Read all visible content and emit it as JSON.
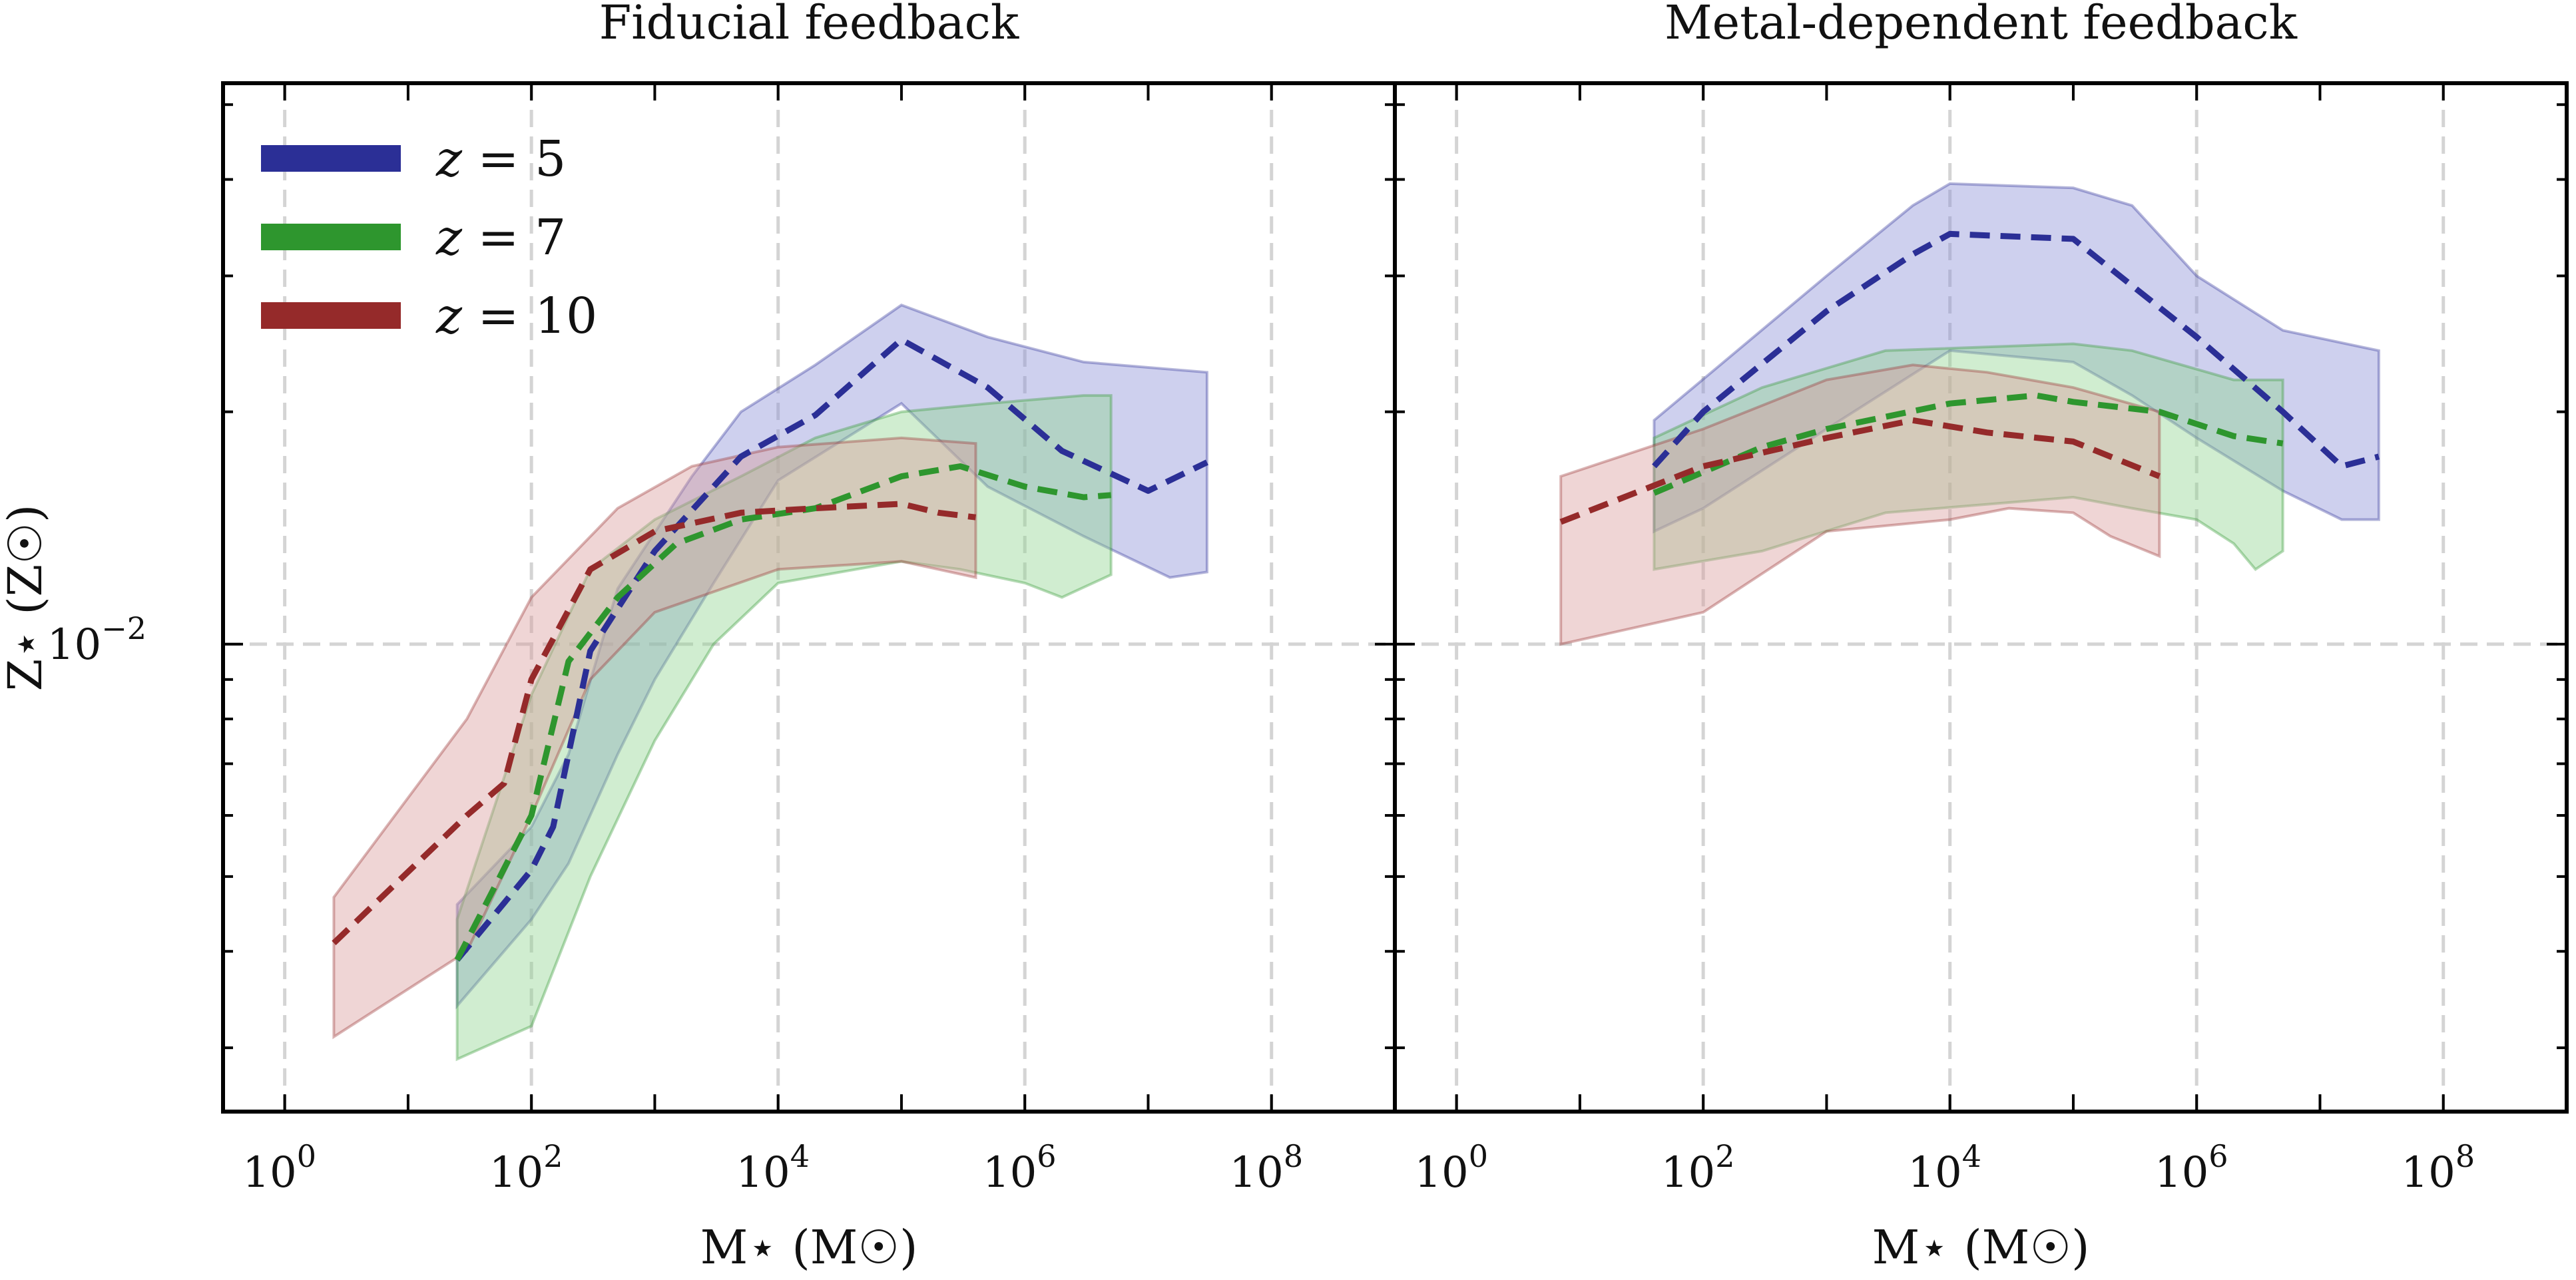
{
  "chart_data": {
    "type": "area",
    "yscale": "log",
    "xscale": "log",
    "ylabel": "Z⋆ (Z☉)",
    "xlabel": "M⋆ (M☉)",
    "ytick_label": "10",
    "ytick_exp": "−2",
    "ytick_value": 0.01,
    "ylim": [
      0.00248,
      0.0533
    ],
    "xlim_log10": [
      -0.5,
      9.0
    ],
    "xtick_values": [
      1,
      100,
      10000,
      1000000,
      100000000
    ],
    "xtick_exponents": [
      "0",
      "2",
      "4",
      "6",
      "8"
    ],
    "grid": true,
    "legend_position": "top-left",
    "legend": [
      {
        "label": "z = 5",
        "var": "z",
        "value": "5",
        "color": "#2b2f96"
      },
      {
        "label": "z = 7",
        "var": "z",
        "value": "7",
        "color": "#2e962e"
      },
      {
        "label": "z = 10",
        "var": "z",
        "value": "10",
        "color": "#952a2a"
      }
    ],
    "panels": [
      {
        "title": "Fiducial feedback",
        "series": [
          {
            "name": "z = 5",
            "color": "#2b2f96",
            "fill": "#8a8fd6",
            "median": [
              [
                25,
                0.0039
              ],
              [
                100,
                0.0051
              ],
              [
                150,
                0.0058
              ],
              [
                300,
                0.0098
              ],
              [
                1000,
                0.0132
              ],
              [
                5000,
                0.0175
              ],
              [
                20000,
                0.0198
              ],
              [
                100000,
                0.0248
              ],
              [
                500000,
                0.0215
              ],
              [
                2000000,
                0.0178
              ],
              [
                10000000,
                0.0158
              ],
              [
                30000000,
                0.0172
              ]
            ],
            "upper": [
              [
                25,
                0.0046
              ],
              [
                100,
                0.0058
              ],
              [
                200,
                0.0072
              ],
              [
                500,
                0.0118
              ],
              [
                2000,
                0.0165
              ],
              [
                5000,
                0.02
              ],
              [
                20000,
                0.023
              ],
              [
                100000,
                0.0275
              ],
              [
                500000,
                0.025
              ],
              [
                3000000,
                0.0232
              ],
              [
                30000000,
                0.0225
              ]
            ],
            "lower": [
              [
                25,
                0.0034
              ],
              [
                100,
                0.0044
              ],
              [
                200,
                0.0052
              ],
              [
                500,
                0.0072
              ],
              [
                1000,
                0.009
              ],
              [
                3000,
                0.012
              ],
              [
                10000,
                0.0163
              ],
              [
                100000,
                0.0205
              ],
              [
                500000,
                0.016
              ],
              [
                3000000,
                0.0138
              ],
              [
                15000000,
                0.0122
              ],
              [
                30000000,
                0.0124
              ]
            ]
          },
          {
            "name": "z = 7",
            "color": "#2e962e",
            "fill": "#8ed48e",
            "median": [
              [
                25,
                0.0039
              ],
              [
                100,
                0.006
              ],
              [
                200,
                0.0095
              ],
              [
                500,
                0.0115
              ],
              [
                1500,
                0.0135
              ],
              [
                5000,
                0.0145
              ],
              [
                20000,
                0.015
              ],
              [
                100000,
                0.0165
              ],
              [
                300000,
                0.017
              ],
              [
                1000000,
                0.016
              ],
              [
                3000000,
                0.0155
              ],
              [
                5000000,
                0.0156
              ]
            ],
            "upper": [
              [
                25,
                0.0044
              ],
              [
                100,
                0.0086
              ],
              [
                300,
                0.0125
              ],
              [
                1000,
                0.0145
              ],
              [
                5000,
                0.0165
              ],
              [
                20000,
                0.0185
              ],
              [
                100000,
                0.02
              ],
              [
                500000,
                0.0205
              ],
              [
                3000000,
                0.021
              ],
              [
                5000000,
                0.021
              ]
            ],
            "lower": [
              [
                25,
                0.0029
              ],
              [
                100,
                0.0032
              ],
              [
                300,
                0.005
              ],
              [
                1000,
                0.0075
              ],
              [
                3000,
                0.01
              ],
              [
                10000,
                0.012
              ],
              [
                100000,
                0.0128
              ],
              [
                300000,
                0.0125
              ],
              [
                1000000,
                0.012
              ],
              [
                2000000,
                0.0115
              ],
              [
                5000000,
                0.0123
              ]
            ]
          },
          {
            "name": "z = 10",
            "color": "#952a2a",
            "fill": "#d89a9a",
            "median": [
              [
                2.5,
                0.0041
              ],
              [
                30,
                0.006
              ],
              [
                60,
                0.0066
              ],
              [
                100,
                0.009
              ],
              [
                300,
                0.0125
              ],
              [
                1000,
                0.014
              ],
              [
                5000,
                0.0148
              ],
              [
                20000,
                0.015
              ],
              [
                100000,
                0.0152
              ],
              [
                200000,
                0.0148
              ],
              [
                400000,
                0.0146
              ]
            ],
            "upper": [
              [
                2.5,
                0.0047
              ],
              [
                30,
                0.008
              ],
              [
                100,
                0.0115
              ],
              [
                500,
                0.015
              ],
              [
                2000,
                0.017
              ],
              [
                10000,
                0.018
              ],
              [
                100000,
                0.0185
              ],
              [
                400000,
                0.0182
              ]
            ],
            "lower": [
              [
                2.5,
                0.0031
              ],
              [
                30,
                0.004
              ],
              [
                100,
                0.006
              ],
              [
                300,
                0.009
              ],
              [
                1000,
                0.011
              ],
              [
                10000,
                0.0125
              ],
              [
                100000,
                0.0128
              ],
              [
                400000,
                0.0122
              ]
            ]
          }
        ]
      },
      {
        "title": "Metal-dependent feedback",
        "series": [
          {
            "name": "z = 5",
            "color": "#2b2f96",
            "fill": "#8a8fd6",
            "median": [
              [
                40,
                0.017
              ],
              [
                100,
                0.02
              ],
              [
                1000,
                0.027
              ],
              [
                5000,
                0.032
              ],
              [
                10000,
                0.034
              ],
              [
                100000,
                0.0335
              ],
              [
                1000000,
                0.025
              ],
              [
                5000000,
                0.02
              ],
              [
                15000000,
                0.017
              ],
              [
                30000000,
                0.0175
              ]
            ],
            "upper": [
              [
                40,
                0.0195
              ],
              [
                1000,
                0.03
              ],
              [
                5000,
                0.037
              ],
              [
                10000,
                0.0395
              ],
              [
                100000,
                0.039
              ],
              [
                300000,
                0.037
              ],
              [
                1000000,
                0.03
              ],
              [
                5000000,
                0.0255
              ],
              [
                30000000,
                0.024
              ]
            ],
            "lower": [
              [
                40,
                0.014
              ],
              [
                100,
                0.015
              ],
              [
                1000,
                0.019
              ],
              [
                10000,
                0.024
              ],
              [
                100000,
                0.0232
              ],
              [
                300000,
                0.021
              ],
              [
                1000000,
                0.0185
              ],
              [
                5000000,
                0.0158
              ],
              [
                15000000,
                0.0145
              ],
              [
                30000000,
                0.0145
              ]
            ]
          },
          {
            "name": "z = 7",
            "color": "#2e962e",
            "fill": "#8ed48e",
            "median": [
              [
                40,
                0.0157
              ],
              [
                300,
                0.018
              ],
              [
                1000,
                0.019
              ],
              [
                10000,
                0.0205
              ],
              [
                50000,
                0.021
              ],
              [
                100000,
                0.0206
              ],
              [
                500000,
                0.02
              ],
              [
                2000000,
                0.0186
              ],
              [
                5000000,
                0.0182
              ]
            ],
            "upper": [
              [
                40,
                0.0185
              ],
              [
                300,
                0.0215
              ],
              [
                3000,
                0.024
              ],
              [
                100000,
                0.0245
              ],
              [
                300000,
                0.024
              ],
              [
                2000000,
                0.022
              ],
              [
                5000000,
                0.022
              ]
            ],
            "lower": [
              [
                40,
                0.0125
              ],
              [
                300,
                0.0132
              ],
              [
                3000,
                0.0148
              ],
              [
                100000,
                0.0155
              ],
              [
                300000,
                0.015
              ],
              [
                1000000,
                0.0145
              ],
              [
                2000000,
                0.0135
              ],
              [
                3000000,
                0.0125
              ],
              [
                5000000,
                0.0132
              ]
            ]
          },
          {
            "name": "z = 10",
            "color": "#952a2a",
            "fill": "#d89a9a",
            "median": [
              [
                7,
                0.0144
              ],
              [
                100,
                0.017
              ],
              [
                1000,
                0.0185
              ],
              [
                5000,
                0.0195
              ],
              [
                20000,
                0.0188
              ],
              [
                100000,
                0.0183
              ],
              [
                200000,
                0.0175
              ],
              [
                500000,
                0.0165
              ]
            ],
            "upper": [
              [
                7,
                0.0165
              ],
              [
                100,
                0.019
              ],
              [
                1000,
                0.022
              ],
              [
                5000,
                0.023
              ],
              [
                20000,
                0.0225
              ],
              [
                100000,
                0.0215
              ],
              [
                500000,
                0.02
              ]
            ],
            "lower": [
              [
                7,
                0.01
              ],
              [
                100,
                0.011
              ],
              [
                1000,
                0.014
              ],
              [
                10000,
                0.0145
              ],
              [
                30000,
                0.015
              ],
              [
                100000,
                0.0148
              ],
              [
                200000,
                0.0138
              ],
              [
                500000,
                0.013
              ]
            ]
          }
        ]
      }
    ]
  }
}
